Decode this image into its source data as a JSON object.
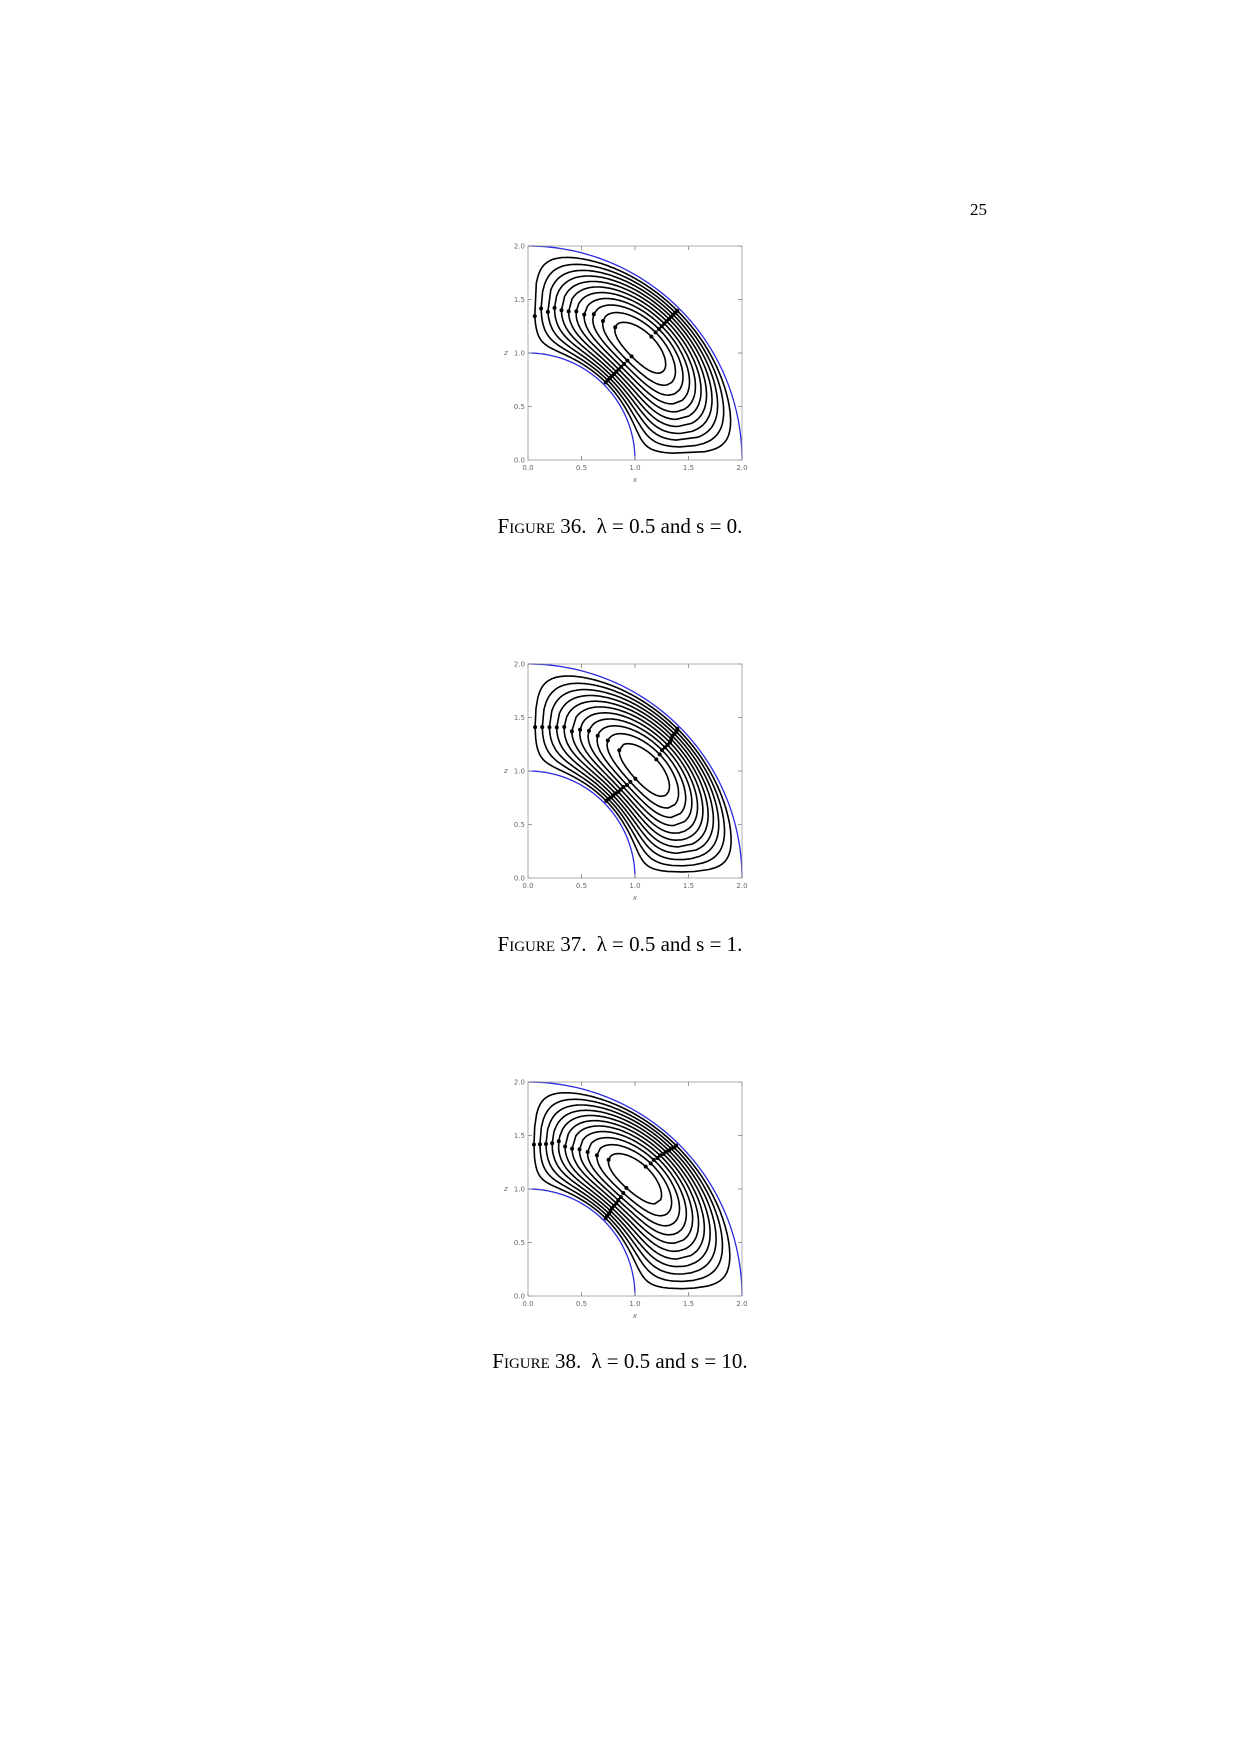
{
  "page_number": "25",
  "figures": [
    {
      "plot": {
        "type": "streamplot",
        "xlabel": "x",
        "ylabel": "z",
        "xlim": [
          0,
          2
        ],
        "ylim": [
          0,
          2
        ],
        "xticks": [
          {
            "value": 0,
            "label": "0.0"
          },
          {
            "value": 0.5,
            "label": "0.5"
          },
          {
            "value": 1,
            "label": "1.0"
          },
          {
            "value": 1.5,
            "label": "1.5"
          },
          {
            "value": 2,
            "label": "2.0"
          }
        ],
        "yticks": [
          {
            "value": 0,
            "label": "0.0"
          },
          {
            "value": 0.5,
            "label": "0.5"
          },
          {
            "value": 1,
            "label": "1.0"
          },
          {
            "value": 1.5,
            "label": "1.5"
          },
          {
            "value": 2,
            "label": "2.0"
          }
        ],
        "boundary_radii": [
          1,
          2
        ]
      },
      "caption": {
        "label": "Figure 36.",
        "text": "λ = 0.5 and s = 0."
      }
    },
    {
      "plot": {
        "type": "streamplot",
        "xlabel": "x",
        "ylabel": "z",
        "xlim": [
          0,
          2
        ],
        "ylim": [
          0,
          2
        ],
        "xticks": [
          {
            "value": 0,
            "label": "0.0"
          },
          {
            "value": 0.5,
            "label": "0.5"
          },
          {
            "value": 1,
            "label": "1.0"
          },
          {
            "value": 1.5,
            "label": "1.5"
          },
          {
            "value": 2,
            "label": "2.0"
          }
        ],
        "yticks": [
          {
            "value": 0,
            "label": "0.0"
          },
          {
            "value": 0.5,
            "label": "0.5"
          },
          {
            "value": 1,
            "label": "1.0"
          },
          {
            "value": 1.5,
            "label": "1.5"
          },
          {
            "value": 2,
            "label": "2.0"
          }
        ],
        "boundary_radii": [
          1,
          2
        ]
      },
      "caption": {
        "label": "Figure 37.",
        "text": "λ = 0.5 and s = 1."
      }
    },
    {
      "plot": {
        "type": "streamplot",
        "xlabel": "x",
        "ylabel": "z",
        "xlim": [
          0,
          2
        ],
        "ylim": [
          0,
          2
        ],
        "xticks": [
          {
            "value": 0,
            "label": "0.0"
          },
          {
            "value": 0.5,
            "label": "0.5"
          },
          {
            "value": 1,
            "label": "1.0"
          },
          {
            "value": 1.5,
            "label": "1.5"
          },
          {
            "value": 2,
            "label": "2.0"
          }
        ],
        "yticks": [
          {
            "value": 0,
            "label": "0.0"
          },
          {
            "value": 0.5,
            "label": "0.5"
          },
          {
            "value": 1,
            "label": "1.0"
          },
          {
            "value": 1.5,
            "label": "1.5"
          },
          {
            "value": 2,
            "label": "2.0"
          }
        ],
        "boundary_radii": [
          1,
          2
        ]
      },
      "caption": {
        "label": "Figure 38.",
        "text": "λ = 0.5 and s = 10."
      }
    }
  ]
}
